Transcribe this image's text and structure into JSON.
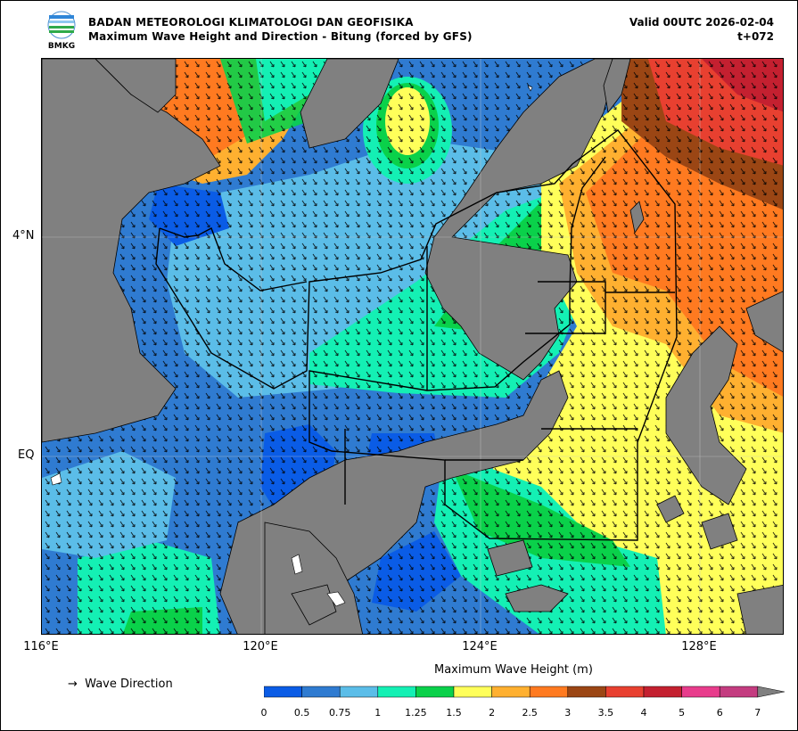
{
  "header": {
    "agency": "BADAN METEOROLOGI KLIMATOLOGI DAN GEOFISIKA",
    "product": "Maximum Wave Height and Direction - Bitung (forced by GFS)",
    "valid": "Valid 00UTC 2026-02-04",
    "lead": "t+072",
    "logo_text": "BMKG"
  },
  "axes": {
    "lat_labels": [
      "4°N",
      "EQ"
    ],
    "lon_labels": [
      "116°E",
      "120°E",
      "124°E",
      "128°E"
    ]
  },
  "legend": {
    "arrow_symbol": "→",
    "direction_label": "Wave Direction",
    "colorbar_title": "Maximum Wave Height (m)",
    "ticks": [
      "0",
      "0.5",
      "0.75",
      "1",
      "1.25",
      "1.5",
      "2",
      "2.5",
      "3",
      "3.5",
      "4",
      "5",
      "6",
      "7"
    ],
    "colors": [
      "#0a5ce6",
      "#2f7bd1",
      "#5bbde8",
      "#14f0b4",
      "#0ad14a",
      "#ffff5a",
      "#ffb030",
      "#ff7a20",
      "#9b4614",
      "#e84030",
      "#c42030",
      "#e83c8c",
      "#c43c80",
      "#808080"
    ]
  },
  "colors": {
    "land": "#808080",
    "ocean_low": "#2f7bd1",
    "boundary": "#000000"
  }
}
